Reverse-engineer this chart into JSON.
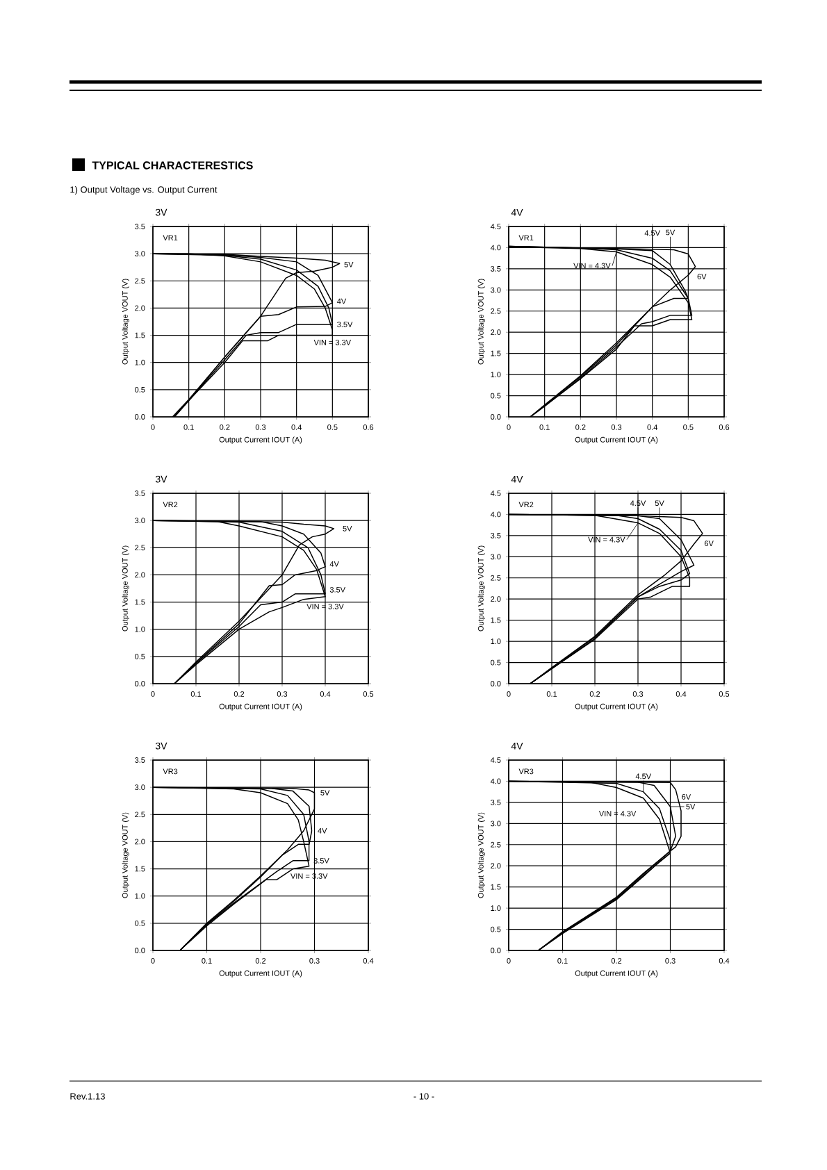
{
  "chart_data": [
    {
      "type": "line",
      "title": "3V",
      "xlabel": "Output Current IOUT (A)",
      "ylabel": "Output Voltage VOUT (V)",
      "grid": true,
      "xlim": [
        0,
        0.6
      ],
      "ylim": [
        0,
        3.5
      ],
      "xticks": [
        0,
        0.1,
        0.2,
        0.3,
        0.4,
        0.5,
        0.6
      ],
      "yticks": [
        {
          "value": 0,
          "label": "0.0"
        },
        0.5,
        {
          "value": 1,
          "label": "1.0"
        },
        1.5,
        {
          "value": 2,
          "label": "2.0"
        },
        2.5,
        {
          "value": 3,
          "label": "3.0"
        },
        3.5
      ],
      "series": [
        {
          "color": "#000000",
          "x": [
            0,
            0.1,
            0.2,
            0.3,
            0.4,
            0.45,
            0.48,
            0.5,
            0.5,
            0.35,
            0.32,
            0.25,
            0.2,
            0.1,
            0.06
          ],
          "values": [
            3.0,
            3.0,
            2.96,
            2.85,
            2.6,
            2.35,
            2.0,
            1.6,
            1.5,
            1.5,
            1.4,
            1.4,
            1.0,
            0.3,
            0
          ]
        },
        {
          "color": "#000000",
          "x": [
            0,
            0.2,
            0.3,
            0.4,
            0.46,
            0.49,
            0.5,
            0.4,
            0.35,
            0.3,
            0.26,
            0.2,
            0.1,
            0.06
          ],
          "values": [
            3.0,
            2.97,
            2.9,
            2.7,
            2.4,
            2.0,
            1.7,
            1.7,
            1.55,
            1.55,
            1.5,
            1.05,
            0.3,
            0
          ]
        },
        {
          "color": "#000000",
          "x": [
            0,
            0.2,
            0.3,
            0.4,
            0.46,
            0.5,
            0.48,
            0.4,
            0.35,
            0.3,
            0.2,
            0.1,
            0.055
          ],
          "values": [
            3.0,
            2.98,
            2.93,
            2.85,
            2.6,
            2.1,
            2.03,
            2.02,
            1.88,
            1.85,
            1.1,
            0.32,
            0
          ]
        },
        {
          "color": "#000000",
          "x": [
            0,
            0.2,
            0.3,
            0.4,
            0.48,
            0.52,
            0.5,
            0.45,
            0.4,
            0.37,
            0.3,
            0.2,
            0.1,
            0.055
          ],
          "values": [
            3.0,
            2.99,
            2.95,
            2.92,
            2.88,
            2.82,
            2.75,
            2.68,
            2.65,
            2.55,
            1.85,
            1.1,
            0.3,
            0
          ]
        }
      ],
      "annotations": [
        "TYPICAL CHARACTERESTICS",
        "1) Output Voltage vs. Output Current",
        "Rev.1.13",
        "- 10 -",
        "VR1",
        {
          "text": "5V",
          "x": 0.52,
          "y": 2.8
        },
        {
          "text": "4V",
          "x": 0.5,
          "y": 2.1
        },
        {
          "text": "3.5V",
          "x": 0.5,
          "y": 1.7
        },
        {
          "text": "VIN = 3.3V",
          "x": 0.5,
          "y": 1.5
        }
      ]
    },
    {
      "type": "line",
      "title": "4V",
      "xlabel": "Output Current IOUT (A)",
      "ylabel": "Output Voltage VOUT (V)",
      "grid": true,
      "xlim": [
        0,
        0.6
      ],
      "ylim": [
        0,
        4.5
      ],
      "xticks": [
        0,
        0.1,
        0.2,
        0.3,
        0.4,
        0.5,
        0.6
      ],
      "yticks": [
        {
          "value": 0,
          "label": "0.0"
        },
        0.5,
        {
          "value": 1,
          "label": "1.0"
        },
        1.5,
        {
          "value": 2,
          "label": "2.0"
        },
        2.5,
        {
          "value": 3,
          "label": "3.0"
        },
        3.5,
        {
          "value": 4,
          "label": "4.0"
        },
        4.5
      ],
      "series": [
        {
          "color": "#000000",
          "x": [
            0,
            0.1,
            0.2,
            0.3,
            0.4,
            0.45,
            0.5,
            0.51,
            0.48,
            0.45,
            0.4,
            0.35,
            0.3,
            0.2,
            0.1,
            0.06
          ],
          "values": [
            4.03,
            4.0,
            3.98,
            3.9,
            3.6,
            3.3,
            2.7,
            2.3,
            2.3,
            2.3,
            2.15,
            2.15,
            1.6,
            0.9,
            0.25,
            0
          ]
        },
        {
          "color": "#000000",
          "x": [
            0,
            0.2,
            0.3,
            0.4,
            0.45,
            0.5,
            0.51,
            0.45,
            0.4,
            0.37,
            0.3,
            0.2,
            0.1,
            0.06
          ],
          "values": [
            4.03,
            3.99,
            3.95,
            3.75,
            3.45,
            2.8,
            2.4,
            2.4,
            2.25,
            2.2,
            1.65,
            0.92,
            0.25,
            0
          ]
        },
        {
          "color": "#000000",
          "x": [
            0,
            0.3,
            0.4,
            0.45,
            0.49,
            0.5,
            0.46,
            0.4,
            0.3,
            0.2,
            0.1,
            0.06
          ],
          "values": [
            4.03,
            3.97,
            3.93,
            3.6,
            3.0,
            2.8,
            2.8,
            2.6,
            1.7,
            0.95,
            0.27,
            0
          ]
        },
        {
          "color": "#000000",
          "x": [
            0,
            0.3,
            0.4,
            0.46,
            0.5,
            0.52,
            0.5,
            0.45,
            0.4,
            0.3,
            0.2,
            0.1,
            0.06
          ],
          "values": [
            4.03,
            3.98,
            3.96,
            3.95,
            3.85,
            3.55,
            3.35,
            3.0,
            2.6,
            1.75,
            0.97,
            0.28,
            0
          ]
        }
      ],
      "annotations": [
        "VR1",
        {
          "text": "4.5V",
          "x": 0.4,
          "y": 3.75
        },
        {
          "text": "5V",
          "x": 0.45,
          "y": 3.6
        },
        {
          "text": "6V",
          "x": 0.52,
          "y": 3.55
        },
        {
          "text": "VIN = 4.3V",
          "x": 0.3,
          "y": 3.9
        }
      ]
    },
    {
      "type": "line",
      "title": "3V",
      "xlabel": "Output Current IOUT (A)",
      "ylabel": "Output Voltage VOUT (V)",
      "grid": true,
      "xlim": [
        0,
        0.5
      ],
      "ylim": [
        0,
        3.5
      ],
      "xticks": [
        0,
        0.1,
        0.2,
        0.3,
        0.4,
        0.5
      ],
      "yticks": [
        {
          "value": 0,
          "label": "0.0"
        },
        0.5,
        {
          "value": 1,
          "label": "1.0"
        },
        1.5,
        {
          "value": 2,
          "label": "2.0"
        },
        2.5,
        {
          "value": 3,
          "label": "3.0"
        },
        3.5
      ],
      "series": [
        {
          "color": "#000000",
          "x": [
            0,
            0.15,
            0.2,
            0.3,
            0.35,
            0.38,
            0.4,
            0.35,
            0.3,
            0.27,
            0.2,
            0.1,
            0.05
          ],
          "values": [
            3.0,
            2.98,
            2.9,
            2.7,
            2.45,
            2.1,
            1.6,
            1.55,
            1.4,
            1.32,
            1.0,
            0.35,
            0
          ]
        },
        {
          "color": "#000000",
          "x": [
            0,
            0.2,
            0.3,
            0.36,
            0.39,
            0.4,
            0.33,
            0.3,
            0.25,
            0.2,
            0.1,
            0.05
          ],
          "values": [
            3.0,
            2.97,
            2.8,
            2.5,
            2.0,
            1.65,
            1.65,
            1.5,
            1.45,
            1.05,
            0.37,
            0
          ]
        },
        {
          "color": "#000000",
          "x": [
            0,
            0.25,
            0.3,
            0.35,
            0.39,
            0.4,
            0.38,
            0.33,
            0.3,
            0.27,
            0.2,
            0.1,
            0.05
          ],
          "values": [
            3.0,
            2.98,
            2.9,
            2.75,
            2.4,
            2.15,
            2.08,
            2.0,
            1.82,
            1.8,
            1.1,
            0.38,
            0
          ]
        },
        {
          "color": "#000000",
          "x": [
            0,
            0.3,
            0.35,
            0.4,
            0.42,
            0.4,
            0.37,
            0.34,
            0.3,
            0.2,
            0.1,
            0.05
          ],
          "values": [
            3.0,
            2.97,
            2.93,
            2.9,
            2.85,
            2.75,
            2.7,
            2.55,
            2.0,
            1.15,
            0.4,
            0
          ]
        }
      ],
      "annotations": [
        "VR2",
        {
          "text": "5V",
          "x": 0.43,
          "y": 2.85
        },
        {
          "text": "4V",
          "x": 0.4,
          "y": 2.15
        },
        {
          "text": "3.5V",
          "x": 0.4,
          "y": 1.65
        },
        {
          "text": "VIN = 3.3V",
          "x": 0.4,
          "y": 1.6
        }
      ]
    },
    {
      "type": "line",
      "title": "4V",
      "xlabel": "Output Current IOUT (A)",
      "ylabel": "Output Voltage VOUT (V)",
      "grid": true,
      "xlim": [
        0,
        0.5
      ],
      "ylim": [
        0,
        4.5
      ],
      "xticks": [
        0,
        0.1,
        0.2,
        0.3,
        0.4,
        0.5
      ],
      "yticks": [
        {
          "value": 0,
          "label": "0.0"
        },
        0.5,
        {
          "value": 1,
          "label": "1.0"
        },
        1.5,
        {
          "value": 2,
          "label": "2.0"
        },
        2.5,
        {
          "value": 3,
          "label": "3.0"
        },
        3.5,
        {
          "value": 4,
          "label": "4.0"
        },
        4.5
      ],
      "series": [
        {
          "color": "#000000",
          "x": [
            0,
            0.2,
            0.3,
            0.35,
            0.4,
            0.42,
            0.42,
            0.38,
            0.33,
            0.3,
            0.2,
            0.1,
            0.05
          ],
          "values": [
            4.0,
            3.98,
            3.8,
            3.55,
            3.0,
            2.5,
            2.3,
            2.3,
            2.05,
            2.0,
            1.05,
            0.35,
            0
          ]
        },
        {
          "color": "#000000",
          "x": [
            0,
            0.25,
            0.3,
            0.35,
            0.4,
            0.42,
            0.4,
            0.35,
            0.3,
            0.2,
            0.1,
            0.05
          ],
          "values": [
            4.0,
            3.98,
            3.9,
            3.65,
            3.15,
            2.6,
            2.45,
            2.3,
            2.05,
            1.07,
            0.36,
            0
          ]
        },
        {
          "color": "#000000",
          "x": [
            0,
            0.3,
            0.35,
            0.4,
            0.43,
            0.4,
            0.35,
            0.3,
            0.2,
            0.1,
            0.05
          ],
          "values": [
            4.0,
            3.97,
            3.9,
            3.4,
            2.8,
            2.65,
            2.35,
            2.05,
            1.1,
            0.37,
            0
          ]
        },
        {
          "color": "#000000",
          "x": [
            0,
            0.3,
            0.4,
            0.43,
            0.45,
            0.43,
            0.4,
            0.36,
            0.3,
            0.2,
            0.1,
            0.05
          ],
          "values": [
            4.0,
            3.97,
            3.93,
            3.85,
            3.55,
            3.3,
            2.9,
            2.55,
            2.1,
            1.12,
            0.38,
            0
          ]
        }
      ],
      "annotations": [
        "VR2",
        {
          "text": "4.5V",
          "x": 0.3,
          "y": 3.9
        },
        {
          "text": "5V",
          "x": 0.35,
          "y": 3.9
        },
        {
          "text": "6V",
          "x": 0.45,
          "y": 3.55
        },
        {
          "text": "VIN = 4.3V",
          "x": 0.3,
          "y": 3.8
        }
      ]
    },
    {
      "type": "line",
      "title": "3V",
      "xlabel": "Output Current IOUT (A)",
      "ylabel": "Output Voltage VOUT (V)",
      "grid": true,
      "xlim": [
        0,
        0.4
      ],
      "ylim": [
        0,
        3.5
      ],
      "xticks": [
        0,
        0.1,
        0.2,
        0.3,
        0.4
      ],
      "yticks": [
        {
          "value": 0,
          "label": "0.0"
        },
        0.5,
        {
          "value": 1,
          "label": "1.0"
        },
        1.5,
        {
          "value": 2,
          "label": "2.0"
        },
        2.5,
        {
          "value": 3,
          "label": "3.0"
        },
        3.5
      ],
      "series": [
        {
          "color": "#000000",
          "x": [
            0,
            0.15,
            0.2,
            0.25,
            0.27,
            0.28,
            0.29,
            0.26,
            0.23,
            0.21,
            0.15,
            0.1,
            0.05
          ],
          "values": [
            3.0,
            2.97,
            2.9,
            2.7,
            2.4,
            2.0,
            1.55,
            1.5,
            1.3,
            1.3,
            0.85,
            0.45,
            0
          ]
        },
        {
          "color": "#000000",
          "x": [
            0,
            0.2,
            0.25,
            0.28,
            0.29,
            0.29,
            0.26,
            0.23,
            0.15,
            0.1,
            0.05
          ],
          "values": [
            3.0,
            2.97,
            2.85,
            2.5,
            2.0,
            1.65,
            1.65,
            1.45,
            0.87,
            0.47,
            0
          ]
        },
        {
          "color": "#000000",
          "x": [
            0,
            0.22,
            0.26,
            0.29,
            0.295,
            0.29,
            0.27,
            0.24,
            0.2,
            0.15,
            0.1,
            0.05
          ],
          "values": [
            3.0,
            2.98,
            2.93,
            2.65,
            2.2,
            1.95,
            1.95,
            1.75,
            1.35,
            0.9,
            0.48,
            0
          ]
        },
        {
          "color": "#000000",
          "x": [
            0,
            0.26,
            0.29,
            0.3,
            0.3,
            0.28,
            0.25,
            0.2,
            0.15,
            0.1,
            0.05
          ],
          "values": [
            3.0,
            2.98,
            2.95,
            2.9,
            2.6,
            2.2,
            1.85,
            1.37,
            0.92,
            0.5,
            0
          ]
        }
      ],
      "annotations": [
        "VR3",
        {
          "text": "5V",
          "x": 0.3,
          "y": 2.9
        },
        {
          "text": "4V",
          "x": 0.295,
          "y": 2.2
        },
        {
          "text": "3.5V",
          "x": 0.29,
          "y": 1.65
        },
        {
          "text": "VIN = 3.3V",
          "x": 0.29,
          "y": 1.55
        }
      ]
    },
    {
      "type": "line",
      "title": "4V",
      "xlabel": "Output Current IOUT (A)",
      "ylabel": "Output Voltage VOUT (V)",
      "grid": true,
      "xlim": [
        0,
        0.4
      ],
      "ylim": [
        0,
        4.5
      ],
      "xticks": [
        0,
        0.1,
        0.2,
        0.3,
        0.4
      ],
      "yticks": [
        {
          "value": 0,
          "label": "0.0"
        },
        0.5,
        {
          "value": 1,
          "label": "1.0"
        },
        1.5,
        {
          "value": 2,
          "label": "2.0"
        },
        2.5,
        {
          "value": 3,
          "label": "3.0"
        },
        3.5,
        {
          "value": 4,
          "label": "4.0"
        },
        4.5
      ],
      "series": [
        {
          "color": "#000000",
          "x": [
            0,
            0.15,
            0.2,
            0.25,
            0.28,
            0.29,
            0.3,
            0.28,
            0.25,
            0.2,
            0.1,
            0.055
          ],
          "values": [
            4.0,
            3.98,
            3.85,
            3.6,
            3.1,
            2.7,
            2.3,
            2.1,
            1.75,
            1.2,
            0.4,
            0
          ]
        },
        {
          "color": "#000000",
          "x": [
            0,
            0.2,
            0.25,
            0.28,
            0.3,
            0.3,
            0.25,
            0.2,
            0.1,
            0.055
          ],
          "values": [
            4.0,
            3.95,
            3.75,
            3.35,
            2.6,
            2.3,
            1.77,
            1.22,
            0.42,
            0
          ]
        },
        {
          "color": "#000000",
          "x": [
            0,
            0.24,
            0.27,
            0.3,
            0.31,
            0.3,
            0.25,
            0.2,
            0.1,
            0.055
          ],
          "values": [
            4.0,
            3.98,
            3.9,
            3.4,
            2.7,
            2.35,
            1.8,
            1.24,
            0.43,
            0
          ]
        },
        {
          "color": "#000000",
          "x": [
            0,
            0.3,
            0.31,
            0.32,
            0.32,
            0.31,
            0.3,
            0.25,
            0.2,
            0.1,
            0.055
          ],
          "values": [
            4.0,
            3.97,
            3.8,
            3.3,
            2.7,
            2.45,
            2.35,
            1.82,
            1.26,
            0.44,
            0
          ]
        }
      ],
      "annotations": [
        "VR3",
        {
          "text": "4.5V",
          "x": 0.25,
          "y": 3.75
        },
        {
          "text": "6V",
          "x": 0.31,
          "y": 3.8
        },
        {
          "text": "5V",
          "x": 0.3,
          "y": 3.4
        },
        {
          "text": "VIN = 4.3V",
          "x": 0.25,
          "y": 3.6
        }
      ]
    }
  ]
}
